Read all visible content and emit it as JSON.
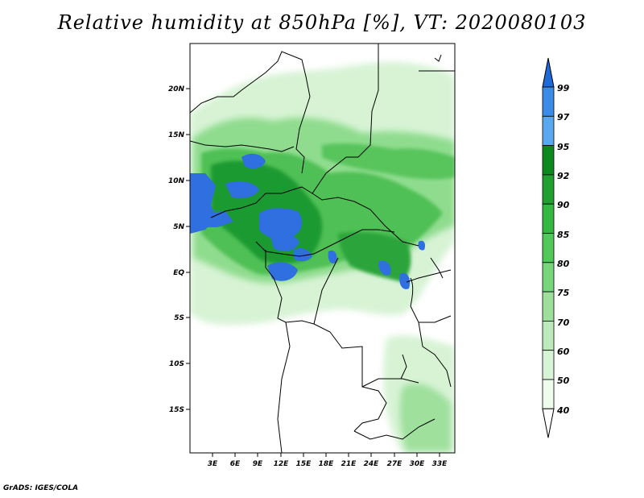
{
  "title": "Relative humidity at 850hPa [%], VT: 2020080103",
  "credit": "GrADS: IGES/COLA",
  "map": {
    "lat_ticks": [
      "20N",
      "15N",
      "10N",
      "5N",
      "EQ",
      "5S",
      "10S",
      "15S"
    ],
    "lon_ticks": [
      "3E",
      "6E",
      "9E",
      "12E",
      "15E",
      "18E",
      "21E",
      "24E",
      "27E",
      "30E",
      "33E"
    ]
  },
  "colorbar": {
    "labels": [
      "99",
      "97",
      "95",
      "92",
      "90",
      "85",
      "80",
      "75",
      "70",
      "60",
      "50",
      "40"
    ],
    "colors": [
      "#1e6ad6",
      "#3a8ce8",
      "#5aa8f0",
      "#0c8a20",
      "#1fa030",
      "#35b842",
      "#52c858",
      "#78d67a",
      "#9de09c",
      "#bdeabb",
      "#d8f4d6",
      "#eefbed",
      "#ffffff"
    ]
  },
  "colors": {
    "land": "#ffffff",
    "border": "#000000",
    "very_wet": "#2f6fdf",
    "wet": "#2ea43a",
    "moist": "#6ccf6c",
    "light": "#bfeabd"
  }
}
